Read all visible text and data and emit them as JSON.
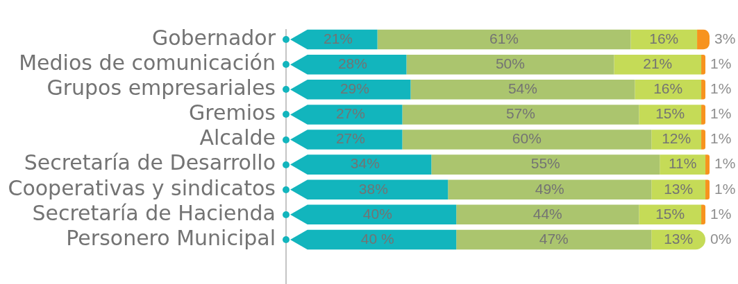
{
  "chart_data": {
    "type": "bar",
    "orientation": "horizontal",
    "stacked": true,
    "tick_labels": "y",
    "categories": [
      "Gobernador",
      "Medios de comunicación",
      "Grupos empresariales",
      "Gremios",
      "Alcalde",
      "Secretaría de Desarrollo",
      "Cooperativas y sindicatos",
      "Secretaría de Hacienda",
      "Personero Municipal"
    ],
    "series": [
      {
        "color": "#12b5bd",
        "values": [
          21,
          28,
          29,
          27,
          27,
          34,
          38,
          40,
          40
        ],
        "value_labels": [
          "21%",
          "28%",
          "29%",
          "27%",
          "27%",
          "34%",
          "38%",
          "40%",
          "40 %"
        ]
      },
      {
        "color": "#abc56e",
        "values": [
          61,
          50,
          54,
          57,
          60,
          55,
          49,
          44,
          47
        ],
        "value_labels": [
          "61%",
          "50%",
          "54%",
          "57%",
          "60%",
          "55%",
          "49%",
          "44%",
          "47%"
        ]
      },
      {
        "color": "#c5db57",
        "values": [
          16,
          21,
          16,
          15,
          12,
          11,
          13,
          15,
          13
        ],
        "value_labels": [
          "16%",
          "21%",
          "16%",
          "15%",
          "12%",
          "11%",
          "13%",
          "15%",
          "13%"
        ]
      },
      {
        "color": "#f7931e",
        "values": [
          3,
          1,
          1,
          1,
          1,
          1,
          1,
          1,
          0
        ],
        "value_labels": [
          "3%",
          "1%",
          "1%",
          "1%",
          "1%",
          "1%",
          "1%",
          "1%",
          "0%"
        ]
      }
    ]
  }
}
